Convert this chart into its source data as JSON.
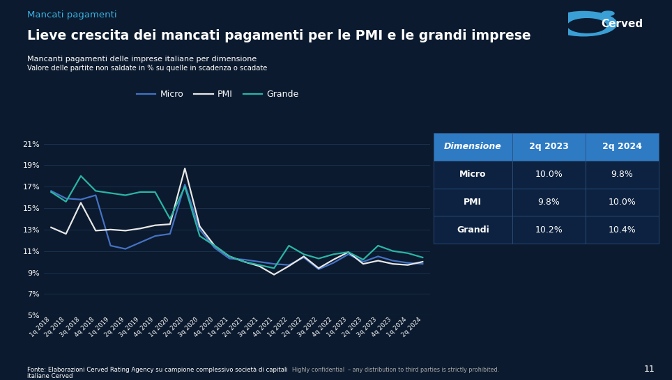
{
  "bg_color": "#0b1a2e",
  "title_tag": "Mancati pagamenti",
  "title_main": "Lieve crescita dei mancati pagamenti per le PMI e le grandi imprese",
  "subtitle1": "Mancanti pagamenti delle imprese italiane per dimensione",
  "subtitle2": "Valore delle partite non saldate in % su quelle in scadenza o scadate",
  "footnote": "Fonte: Elaborazioni Cerved Rating Agency su campione complessivo società di capitali",
  "footnote_bold": "italiane Cerved",
  "footnote2": "Highly confidential  – any distribution to third parties is strictly prohibited.",
  "page_num": "11",
  "x_labels": [
    "1q 2018",
    "2q 2018",
    "3q 2018",
    "4q 2018",
    "1q 2019",
    "2q 2019",
    "3q 2019",
    "4q 2019",
    "1q 2020",
    "2q 2020",
    "3q 2020",
    "4q 2020",
    "1q 2021",
    "2q 2021",
    "3q 2021",
    "4q 2021",
    "1q 2022",
    "2q 2022",
    "3q 2022",
    "4q 2022",
    "1q 2023",
    "2q 2023",
    "3q 2023",
    "4q 2023",
    "1q 2024",
    "2q 2024"
  ],
  "micro": [
    16.6,
    15.9,
    15.8,
    16.2,
    11.5,
    11.2,
    11.8,
    12.4,
    12.6,
    17.2,
    13.0,
    11.3,
    10.3,
    10.2,
    10.0,
    9.8,
    9.7,
    10.4,
    9.3,
    9.9,
    10.7,
    10.0,
    10.5,
    10.1,
    9.9,
    9.8
  ],
  "pmi": [
    13.2,
    12.6,
    15.5,
    12.9,
    13.0,
    12.9,
    13.1,
    13.4,
    13.5,
    18.7,
    13.3,
    11.5,
    10.5,
    10.0,
    9.6,
    8.8,
    9.6,
    10.5,
    9.4,
    10.2,
    10.9,
    9.8,
    10.1,
    9.8,
    9.7,
    10.0
  ],
  "grande": [
    16.5,
    15.6,
    18.0,
    16.6,
    16.4,
    16.2,
    16.5,
    16.5,
    14.0,
    17.0,
    12.4,
    11.5,
    10.5,
    10.0,
    9.7,
    9.4,
    11.5,
    10.7,
    10.3,
    10.7,
    10.9,
    10.2,
    11.5,
    11.0,
    10.8,
    10.4
  ],
  "micro_color": "#4472c4",
  "pmi_color": "#e8e8e8",
  "grande_color": "#2ab5a5",
  "ylim": [
    5,
    22
  ],
  "yticks": [
    5,
    7,
    9,
    11,
    13,
    15,
    17,
    19,
    21
  ],
  "table_header_bg": "#2e7bc4",
  "table_row_bg1": "#0d2240",
  "table_row_bg2": "#0d2240",
  "table_border": "#2a5080",
  "table_headers": [
    "Dimensione",
    "2q 2023",
    "2q 2024"
  ],
  "table_rows": [
    [
      "Micro",
      "10.0%",
      "9.8%"
    ],
    [
      "PMI",
      "9.8%",
      "10.0%"
    ],
    [
      "Grandi",
      "10.2%",
      "10.4%"
    ]
  ],
  "cerved_color": "#3a9fd5"
}
